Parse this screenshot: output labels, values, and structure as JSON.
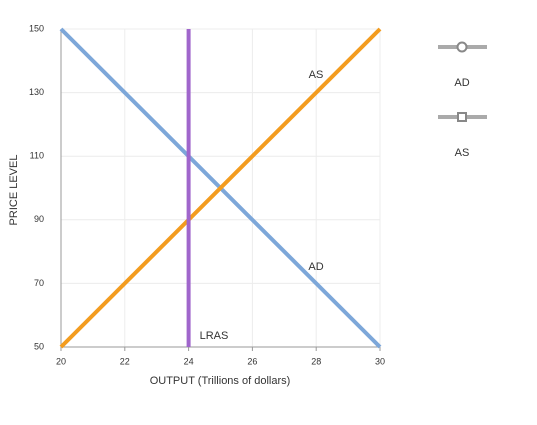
{
  "chart_data": {
    "type": "line",
    "x_label": "OUTPUT (Trillions of dollars)",
    "y_label": "PRICE LEVEL",
    "xlim": [
      20,
      30
    ],
    "ylim": [
      50,
      150
    ],
    "xticks": [
      20,
      22,
      24,
      26,
      28,
      30
    ],
    "yticks": [
      50,
      70,
      90,
      110,
      130,
      150
    ],
    "grid": true,
    "series": [
      {
        "name": "AD",
        "color": "#7da7d9",
        "marker": "circle",
        "x": [
          20,
          30
        ],
        "values": [
          150,
          50
        ]
      },
      {
        "name": "AS",
        "color": "#f39c1f",
        "marker": "square",
        "x": [
          20,
          30
        ],
        "values": [
          50,
          150
        ]
      },
      {
        "name": "LRAS",
        "color": "#a066cc",
        "legend": false,
        "x": [
          24,
          24
        ],
        "values": [
          50,
          150
        ]
      }
    ]
  }
}
